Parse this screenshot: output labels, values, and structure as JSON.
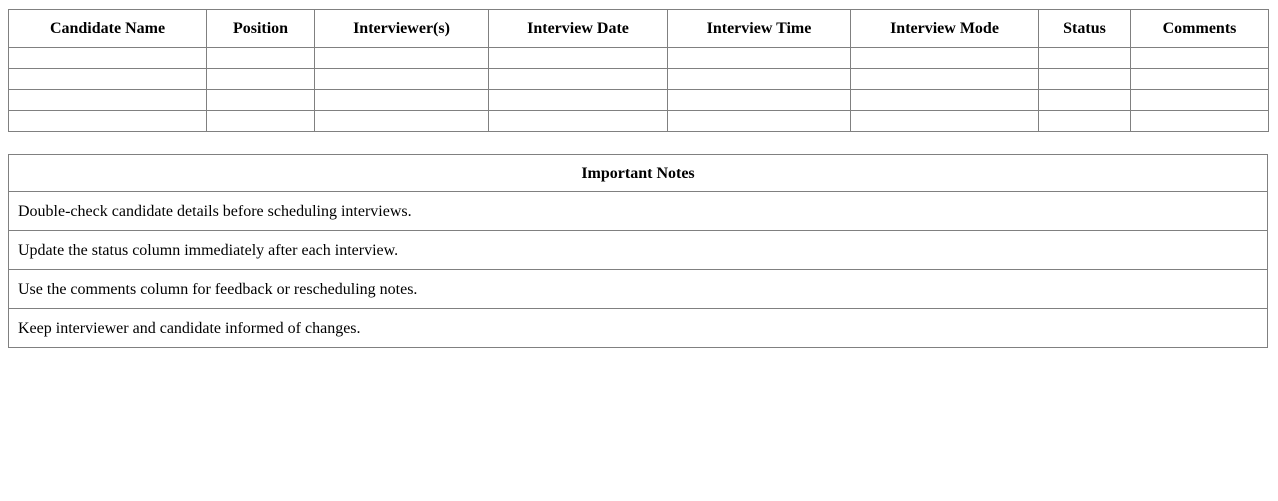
{
  "schedule_table": {
    "columns": [
      {
        "label": "Candidate Name"
      },
      {
        "label": "Position"
      },
      {
        "label": "Interviewer(s)"
      },
      {
        "label": "Interview Date"
      },
      {
        "label": "Interview Time"
      },
      {
        "label": "Interview Mode"
      },
      {
        "label": "Status"
      },
      {
        "label": "Comments"
      }
    ],
    "empty_row_count": 4
  },
  "notes_table": {
    "title": "Important Notes",
    "notes": [
      "Double-check candidate details before scheduling interviews.",
      "Update the status column immediately after each interview.",
      "Use the comments column for feedback or rescheduling notes.",
      "Keep interviewer and candidate informed of changes."
    ]
  },
  "colors": {
    "border": "#808080",
    "text": "#000000",
    "background": "#ffffff"
  }
}
